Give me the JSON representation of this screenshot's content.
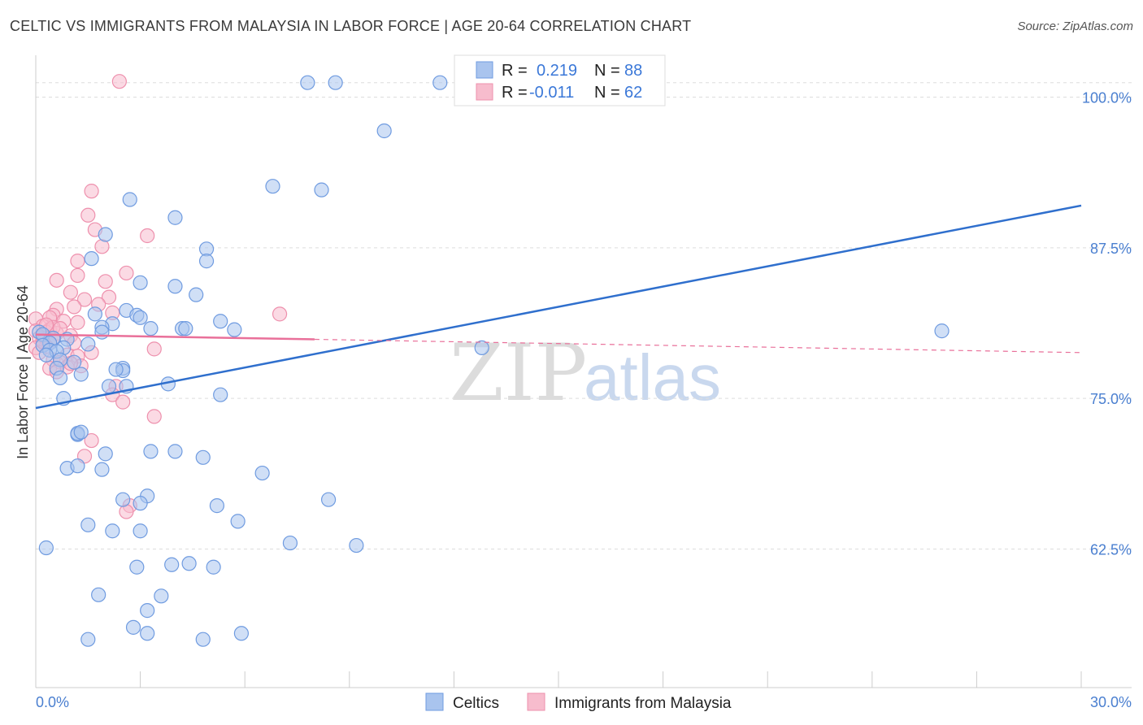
{
  "header": {
    "title": "CELTIC VS IMMIGRANTS FROM MALAYSIA IN LABOR FORCE | AGE 20-64 CORRELATION CHART",
    "source": "Source: ZipAtlas.com"
  },
  "watermark": {
    "zip": "ZIP",
    "atlas": "atlas"
  },
  "legend_box": {
    "r_label": "R =",
    "n_label": "N =",
    "rows": [
      {
        "series": "Celtics",
        "r": "0.219",
        "n": "88"
      },
      {
        "series": "Immigrants from Malaysia",
        "r": "-0.011",
        "n": "62"
      }
    ]
  },
  "colors": {
    "blue_fill": "#a9c4ee",
    "blue_stroke": "#6f9be0",
    "blue_line": "#2f6fcd",
    "pink_fill": "#f7bccd",
    "pink_stroke": "#ee90ad",
    "pink_line": "#e9709a",
    "grid": "#dddddd",
    "tick_text": "#4a7fd0"
  },
  "chart_data": {
    "type": "scatter",
    "title": "CELTIC VS IMMIGRANTS FROM MALAYSIA IN LABOR FORCE | AGE 20-64 CORRELATION CHART",
    "xlabel": "",
    "ylabel": "In Labor Force | Age 20-64",
    "xlim": [
      0,
      30
    ],
    "ylim": [
      51.0,
      103.0
    ],
    "x_tick_labels": [
      "0.0%",
      "30.0%"
    ],
    "y_ticks": [
      62.5,
      75.0,
      87.5,
      100.0
    ],
    "y_tick_labels": [
      "62.5%",
      "75.0%",
      "87.5%",
      "100.0%"
    ],
    "grid": true,
    "series": [
      {
        "name": "Celtics",
        "color": "blue",
        "trend": {
          "x": [
            0,
            30
          ],
          "y": [
            74.2,
            91.0
          ],
          "dashed_from": null
        },
        "points": [
          [
            7.8,
            101.2
          ],
          [
            8.6,
            101.2
          ],
          [
            11.6,
            101.2
          ],
          [
            10.0,
            97.2
          ],
          [
            6.8,
            92.6
          ],
          [
            8.2,
            92.3
          ],
          [
            2.7,
            91.5
          ],
          [
            4.0,
            90.0
          ],
          [
            2.0,
            88.6
          ],
          [
            4.9,
            87.4
          ],
          [
            1.6,
            86.6
          ],
          [
            4.9,
            86.4
          ],
          [
            3.0,
            84.6
          ],
          [
            4.0,
            84.3
          ],
          [
            4.6,
            83.6
          ],
          [
            2.6,
            82.3
          ],
          [
            1.7,
            82.0
          ],
          [
            2.9,
            81.9
          ],
          [
            3.0,
            81.7
          ],
          [
            5.3,
            81.4
          ],
          [
            2.2,
            81.2
          ],
          [
            1.9,
            80.9
          ],
          [
            4.2,
            80.8
          ],
          [
            3.3,
            80.8
          ],
          [
            5.7,
            80.7
          ],
          [
            4.3,
            80.8
          ],
          [
            1.9,
            80.5
          ],
          [
            0.1,
            80.5
          ],
          [
            0.2,
            80.3
          ],
          [
            0.5,
            80.0
          ],
          [
            0.9,
            79.9
          ],
          [
            0.4,
            79.6
          ],
          [
            1.5,
            79.5
          ],
          [
            0.2,
            79.4
          ],
          [
            0.8,
            79.2
          ],
          [
            0.4,
            79.0
          ],
          [
            0.6,
            78.9
          ],
          [
            0.3,
            78.6
          ],
          [
            0.7,
            78.2
          ],
          [
            1.1,
            78.0
          ],
          [
            12.8,
            79.2
          ],
          [
            26.0,
            80.6
          ],
          [
            0.6,
            77.5
          ],
          [
            2.5,
            77.5
          ],
          [
            2.5,
            77.3
          ],
          [
            2.3,
            77.4
          ],
          [
            1.3,
            77.0
          ],
          [
            0.7,
            76.7
          ],
          [
            3.8,
            76.2
          ],
          [
            2.1,
            76.0
          ],
          [
            2.6,
            76.0
          ],
          [
            0.8,
            75.0
          ],
          [
            5.3,
            75.3
          ],
          [
            1.2,
            72.0
          ],
          [
            1.2,
            72.1
          ],
          [
            1.3,
            72.2
          ],
          [
            2.0,
            70.4
          ],
          [
            3.3,
            70.6
          ],
          [
            4.0,
            70.6
          ],
          [
            4.8,
            70.1
          ],
          [
            0.9,
            69.2
          ],
          [
            1.9,
            69.1
          ],
          [
            3.2,
            66.9
          ],
          [
            3.0,
            66.3
          ],
          [
            2.5,
            66.6
          ],
          [
            5.2,
            66.1
          ],
          [
            2.9,
            61.0
          ],
          [
            1.8,
            58.7
          ],
          [
            3.6,
            58.6
          ],
          [
            3.9,
            61.2
          ],
          [
            5.1,
            61.0
          ],
          [
            3.2,
            57.4
          ],
          [
            6.5,
            68.8
          ],
          [
            8.4,
            66.6
          ],
          [
            1.2,
            69.4
          ],
          [
            2.2,
            64.0
          ],
          [
            1.5,
            64.5
          ],
          [
            3.0,
            64.0
          ],
          [
            5.8,
            64.8
          ],
          [
            4.4,
            61.3
          ],
          [
            7.3,
            63.0
          ],
          [
            9.2,
            62.8
          ],
          [
            0.3,
            62.6
          ],
          [
            2.8,
            56.0
          ],
          [
            3.2,
            55.5
          ],
          [
            4.8,
            55.0
          ],
          [
            5.9,
            55.5
          ],
          [
            1.5,
            55.0
          ]
        ]
      },
      {
        "name": "Immigrants from Malaysia",
        "color": "pink",
        "trend": {
          "x": [
            0,
            30
          ],
          "y": [
            80.3,
            78.8
          ],
          "dashed_from": 8.0
        },
        "points": [
          [
            2.4,
            101.3
          ],
          [
            1.6,
            92.2
          ],
          [
            1.5,
            90.2
          ],
          [
            1.7,
            89.0
          ],
          [
            3.2,
            88.5
          ],
          [
            1.9,
            87.6
          ],
          [
            1.2,
            86.4
          ],
          [
            2.6,
            85.4
          ],
          [
            1.2,
            85.2
          ],
          [
            0.6,
            84.8
          ],
          [
            2.0,
            84.7
          ],
          [
            1.0,
            83.8
          ],
          [
            2.1,
            83.4
          ],
          [
            1.4,
            83.2
          ],
          [
            1.8,
            82.8
          ],
          [
            1.1,
            82.6
          ],
          [
            0.6,
            82.4
          ],
          [
            7.0,
            82.0
          ],
          [
            2.2,
            82.1
          ],
          [
            0.5,
            81.9
          ],
          [
            0.4,
            81.7
          ],
          [
            0.0,
            81.6
          ],
          [
            0.8,
            81.4
          ],
          [
            1.2,
            81.3
          ],
          [
            0.2,
            81.0
          ],
          [
            0.4,
            80.7
          ],
          [
            0.0,
            80.6
          ],
          [
            0.3,
            80.5
          ],
          [
            0.6,
            80.4
          ],
          [
            1.0,
            80.2
          ],
          [
            0.1,
            80.0
          ],
          [
            0.5,
            79.9
          ],
          [
            0.2,
            79.8
          ],
          [
            0.4,
            79.6
          ],
          [
            0.3,
            79.3
          ],
          [
            0.0,
            79.2
          ],
          [
            0.1,
            78.8
          ],
          [
            3.4,
            79.1
          ],
          [
            1.6,
            78.8
          ],
          [
            0.9,
            78.6
          ],
          [
            1.2,
            78.5
          ],
          [
            0.5,
            78.2
          ],
          [
            0.7,
            78.0
          ],
          [
            1.3,
            77.7
          ],
          [
            0.4,
            77.5
          ],
          [
            0.6,
            77.2
          ],
          [
            2.3,
            76.0
          ],
          [
            2.2,
            75.3
          ],
          [
            2.5,
            74.7
          ],
          [
            3.4,
            73.5
          ],
          [
            1.6,
            71.5
          ],
          [
            1.4,
            70.2
          ],
          [
            2.7,
            66.1
          ],
          [
            2.6,
            65.6
          ],
          [
            0.9,
            77.6
          ],
          [
            1.0,
            77.9
          ],
          [
            0.2,
            80.2
          ],
          [
            0.5,
            80.9
          ],
          [
            1.1,
            79.6
          ],
          [
            0.3,
            81.1
          ],
          [
            0.7,
            80.8
          ],
          [
            0.2,
            79.7
          ]
        ]
      }
    ]
  }
}
